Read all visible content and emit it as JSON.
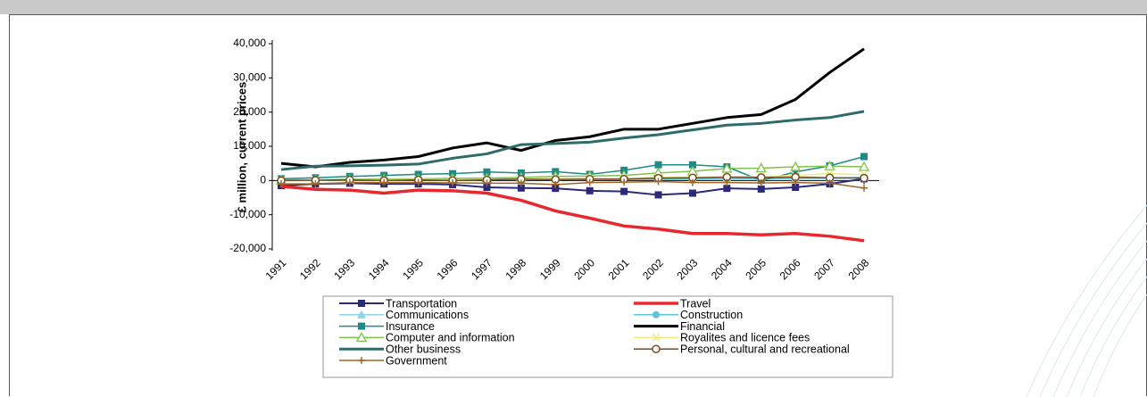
{
  "chart_data": {
    "type": "line",
    "y_label": "£ million, current prices",
    "categories": [
      "1991",
      "1992",
      "1993",
      "1994",
      "1995",
      "1996",
      "1997",
      "1998",
      "1999",
      "2000",
      "2001",
      "2002",
      "2003",
      "2004",
      "2005",
      "2006",
      "2007",
      "2008"
    ],
    "ylim": [
      -20000,
      40000
    ],
    "yticks": [
      {
        "value": -20000,
        "label": "-20,000"
      },
      {
        "value": -10000,
        "label": "-10,000"
      },
      {
        "value": 0,
        "label": "0"
      },
      {
        "value": 10000,
        "label": "10,000"
      },
      {
        "value": 20000,
        "label": "20,000"
      },
      {
        "value": 30000,
        "label": "30,000"
      },
      {
        "value": 40000,
        "label": "40,000"
      }
    ],
    "series": [
      {
        "name": "Transportation",
        "color": "#2b2a7a",
        "marker": "square",
        "line_width": 2,
        "values": [
          -1500,
          -1000,
          -800,
          -1000,
          -1000,
          -1200,
          -2000,
          -2200,
          -2300,
          -3000,
          -3200,
          -4200,
          -3700,
          -2300,
          -2500,
          -2000,
          -1000,
          500
        ]
      },
      {
        "name": "Travel",
        "color": "#e8282e",
        "marker": "none",
        "line_width": 3.5,
        "values": [
          -1700,
          -2600,
          -2800,
          -3700,
          -2800,
          -3000,
          -3700,
          -5800,
          -8900,
          -11000,
          -13300,
          -14200,
          -15500,
          -15500,
          -15900,
          -15500,
          -16300,
          -17600
        ]
      },
      {
        "name": "Communications",
        "color": "#8fd3e8",
        "marker": "triangle",
        "line_width": 1.5,
        "values": [
          0,
          0,
          200,
          200,
          300,
          300,
          400,
          400,
          500,
          600,
          500,
          600,
          500,
          700,
          800,
          700,
          600,
          800
        ]
      },
      {
        "name": "Construction",
        "color": "#5bc4dc",
        "marker": "circle",
        "line_width": 1.5,
        "values": [
          200,
          200,
          200,
          200,
          200,
          300,
          300,
          300,
          300,
          400,
          400,
          400,
          400,
          500,
          500,
          600,
          700,
          900
        ]
      },
      {
        "name": "Insurance",
        "color": "#1f8a86",
        "marker": "square",
        "line_width": 1.5,
        "values": [
          500,
          800,
          1200,
          1500,
          1800,
          2000,
          2500,
          2200,
          2600,
          1800,
          3000,
          4600,
          4600,
          4000,
          0,
          2500,
          4300,
          7000
        ]
      },
      {
        "name": "Financial",
        "color": "#000000",
        "marker": "none",
        "line_width": 3,
        "values": [
          5000,
          4000,
          5300,
          6000,
          7000,
          9500,
          11000,
          8800,
          11700,
          12800,
          15000,
          15000,
          16700,
          18400,
          19300,
          23700,
          31600,
          38500
        ]
      },
      {
        "name": "Computer and information",
        "color": "#7dc24a",
        "marker": "open-triangle",
        "line_width": 1.5,
        "values": [
          0,
          200,
          300,
          400,
          500,
          600,
          700,
          900,
          1200,
          1300,
          1500,
          2200,
          2700,
          3500,
          3600,
          4000,
          4200,
          4000
        ]
      },
      {
        "name": "Royalites and licence fees",
        "color": "#eeea84",
        "marker": "x",
        "line_width": 1.5,
        "values": [
          0,
          200,
          100,
          200,
          300,
          200,
          300,
          300,
          500,
          700,
          500,
          1000,
          900,
          1000,
          1200,
          1500,
          2000,
          1700
        ]
      },
      {
        "name": "Other business",
        "color": "#2e6b6b",
        "marker": "none",
        "line_width": 3,
        "values": [
          3200,
          4200,
          4300,
          4500,
          4800,
          6500,
          7800,
          10500,
          10800,
          11200,
          12400,
          13400,
          14800,
          16200,
          16700,
          17700,
          18400,
          20200
        ]
      },
      {
        "name": "Personal, cultural and recreational",
        "color": "#7a4a20",
        "marker": "open-circle",
        "line_width": 1.5,
        "values": [
          0,
          100,
          200,
          0,
          200,
          0,
          200,
          400,
          300,
          400,
          400,
          700,
          800,
          1000,
          900,
          1000,
          800,
          700
        ]
      },
      {
        "name": "Government",
        "color": "#a0662a",
        "marker": "plus",
        "line_width": 1.5,
        "values": [
          -1000,
          -1000,
          -600,
          -600,
          -600,
          -700,
          -800,
          -800,
          -1200,
          -600,
          -500,
          -300,
          -600,
          -600,
          -700,
          -600,
          -800,
          -2200
        ]
      }
    ]
  }
}
